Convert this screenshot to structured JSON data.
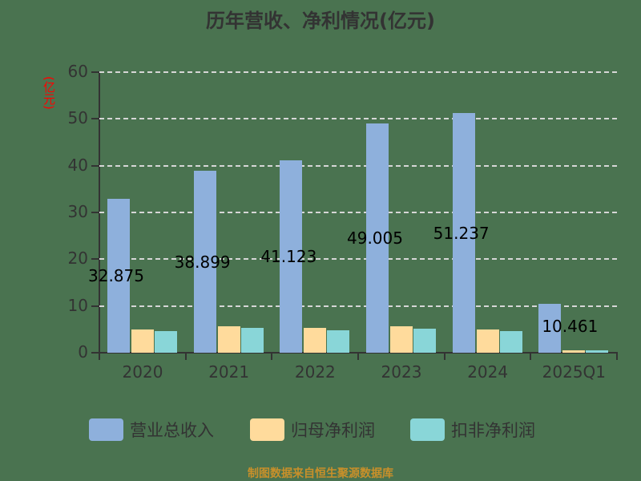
{
  "chart": {
    "title": "历年营收、净利情况(亿元)",
    "ylabel": "(亿元)",
    "yticks": [
      "0",
      "10",
      "20",
      "30",
      "40",
      "50",
      "60"
    ],
    "source": "制图数据来自恒生聚源数据库",
    "legend": [
      {
        "label": "营业总收入",
        "color": "#8eb0dc"
      },
      {
        "label": "归母净利润",
        "color": "#ffdb9c"
      },
      {
        "label": "扣非净利润",
        "color": "#89d6d8"
      }
    ]
  },
  "chart_data": {
    "type": "bar",
    "title": "历年营收、净利情况(亿元)",
    "xlabel": "",
    "ylabel": "(亿元)",
    "ylim": [
      0,
      60
    ],
    "grid": true,
    "legend_position": "bottom",
    "categories": [
      "2020",
      "2021",
      "2022",
      "2023",
      "2024",
      "2025Q1"
    ],
    "series": [
      {
        "name": "营业总收入",
        "values": [
          32.875,
          38.899,
          41.123,
          49.005,
          51.237,
          10.461
        ],
        "color": "#8eb0dc"
      },
      {
        "name": "归母净利润",
        "values": [
          4.9,
          5.7,
          5.3,
          5.7,
          5.0,
          0.5
        ],
        "color": "#ffdb9c"
      },
      {
        "name": "扣非净利润",
        "values": [
          4.6,
          5.3,
          4.8,
          5.2,
          4.6,
          0.5
        ],
        "color": "#89d6d8"
      }
    ],
    "data_labels": [
      "32.875",
      "38.899",
      "41.123",
      "49.005",
      "51.237",
      "10.461"
    ]
  }
}
